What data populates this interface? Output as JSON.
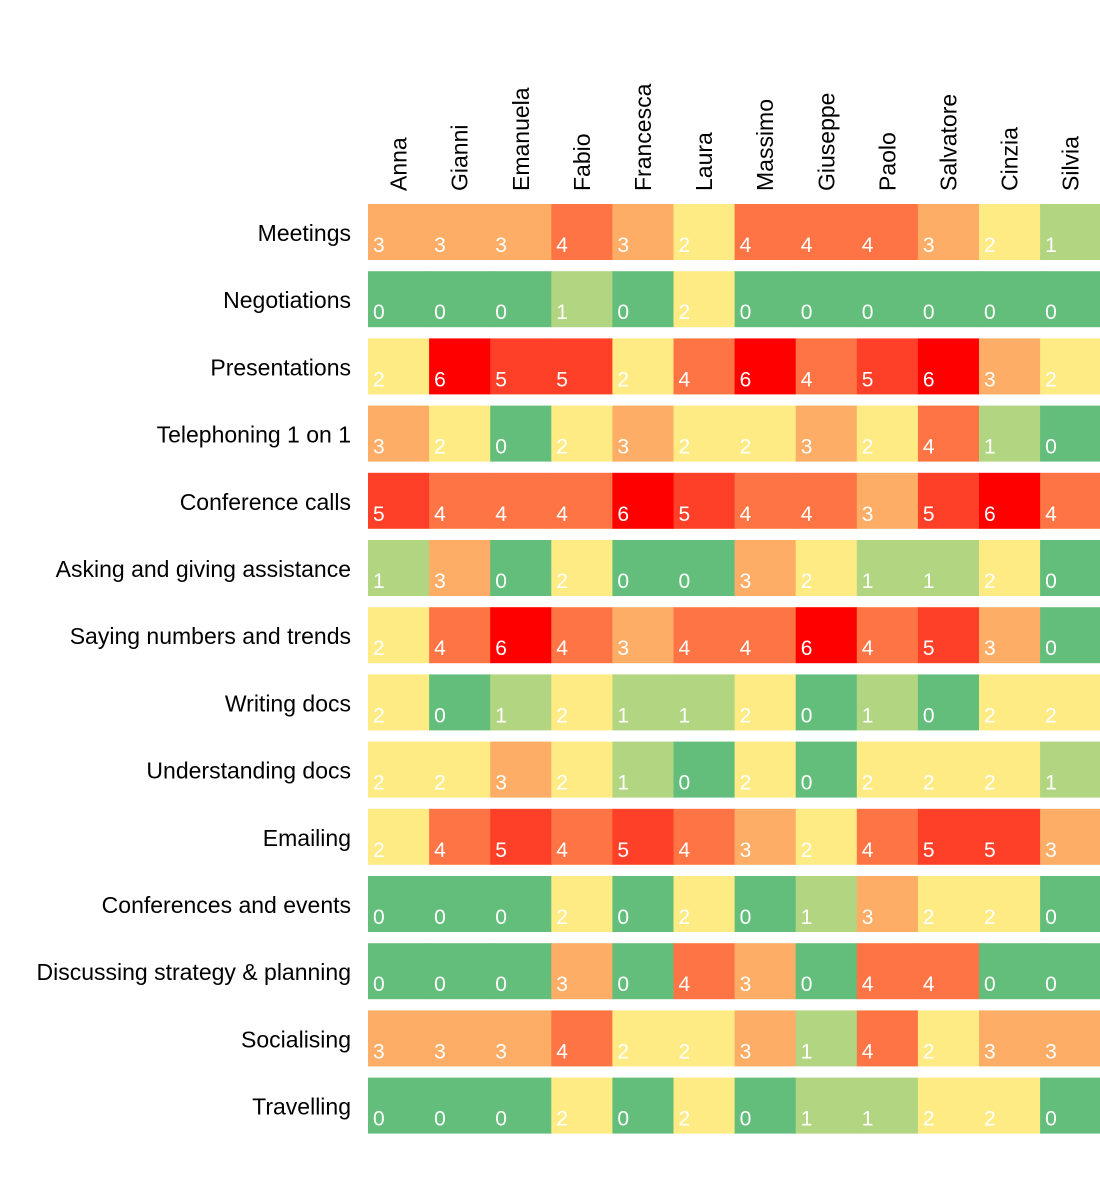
{
  "chart_data": {
    "type": "heatmap",
    "title": "",
    "xlabel": "",
    "ylabel": "",
    "columns": [
      "Anna",
      "Gianni",
      "Emanuela",
      "Fabio",
      "Francesca",
      "Laura",
      "Massimo",
      "Giuseppe",
      "Paolo",
      "Salvatore",
      "Cinzia",
      "Silvia"
    ],
    "rows": [
      "Meetings",
      "Negotiations",
      "Presentations",
      "Telephoning 1 on 1",
      "Conference calls",
      "Asking and giving assistance",
      "Saying numbers and trends",
      "Writing docs",
      "Understanding docs",
      "Emailing",
      "Conferences and events",
      "Discussing strategy & planning",
      "Socialising",
      "Travelling"
    ],
    "values": [
      [
        3,
        3,
        3,
        4,
        3,
        2,
        4,
        4,
        4,
        3,
        2,
        1
      ],
      [
        0,
        0,
        0,
        1,
        0,
        2,
        0,
        0,
        0,
        0,
        0,
        0
      ],
      [
        2,
        6,
        5,
        5,
        2,
        4,
        6,
        4,
        5,
        6,
        3,
        2
      ],
      [
        3,
        2,
        0,
        2,
        3,
        2,
        2,
        3,
        2,
        4,
        1,
        0
      ],
      [
        5,
        4,
        4,
        4,
        6,
        5,
        4,
        4,
        3,
        5,
        6,
        4
      ],
      [
        1,
        3,
        0,
        2,
        0,
        0,
        3,
        2,
        1,
        1,
        2,
        0
      ],
      [
        2,
        4,
        6,
        4,
        3,
        4,
        4,
        6,
        4,
        5,
        3,
        0
      ],
      [
        2,
        0,
        1,
        2,
        1,
        1,
        2,
        0,
        1,
        0,
        2,
        2
      ],
      [
        2,
        2,
        3,
        2,
        1,
        0,
        2,
        0,
        2,
        2,
        2,
        1
      ],
      [
        2,
        4,
        5,
        4,
        5,
        4,
        3,
        2,
        4,
        5,
        5,
        3
      ],
      [
        0,
        0,
        0,
        2,
        0,
        2,
        0,
        1,
        3,
        2,
        2,
        0
      ],
      [
        0,
        0,
        0,
        3,
        0,
        4,
        3,
        0,
        4,
        4,
        0,
        0
      ],
      [
        3,
        3,
        3,
        4,
        2,
        2,
        3,
        1,
        4,
        2,
        3,
        3
      ],
      [
        0,
        0,
        0,
        2,
        0,
        2,
        0,
        1,
        1,
        2,
        2,
        0
      ]
    ],
    "color_scale": {
      "0": "#63be7b",
      "1": "#b1d580",
      "2": "#ffeb84",
      "3": "#fdad66",
      "4": "#fe7445",
      "5": "#ff4028",
      "6": "#ff0000"
    },
    "legend": "none",
    "grid": false
  }
}
